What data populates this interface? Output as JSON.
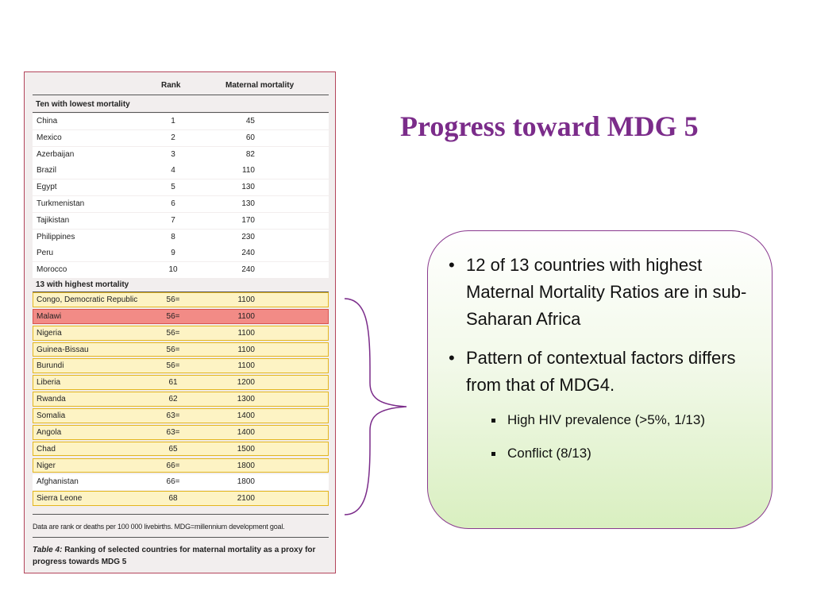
{
  "slide": {
    "title": "Progress toward MDG 5"
  },
  "table": {
    "headers": {
      "rank": "Rank",
      "mortality": "Maternal mortality"
    },
    "section_lowest": "Ten with lowest mortality",
    "lowest": [
      {
        "country": "China",
        "rank": "1",
        "mm": "45"
      },
      {
        "country": "Mexico",
        "rank": "2",
        "mm": "60"
      },
      {
        "country": "Azerbaijan",
        "rank": "3",
        "mm": "82"
      },
      {
        "country": "Brazil",
        "rank": "4",
        "mm": "110"
      },
      {
        "country": "Egypt",
        "rank": "5",
        "mm": "130"
      },
      {
        "country": "Turkmenistan",
        "rank": "6",
        "mm": "130"
      },
      {
        "country": "Tajikistan",
        "rank": "7",
        "mm": "170"
      },
      {
        "country": "Philippines",
        "rank": "8",
        "mm": "230"
      },
      {
        "country": "Peru",
        "rank": "9",
        "mm": "240"
      },
      {
        "country": "Morocco",
        "rank": "10",
        "mm": "240"
      }
    ],
    "section_highest": "13 with highest mortality",
    "highest": [
      {
        "country": "Congo, Democratic Republic",
        "rank": "56=",
        "mm": "1100",
        "style": "hl"
      },
      {
        "country": "Malawi",
        "rank": "56=",
        "mm": "1100",
        "style": "red"
      },
      {
        "country": "Nigeria",
        "rank": "56=",
        "mm": "1100",
        "style": "hl"
      },
      {
        "country": "Guinea-Bissau",
        "rank": "56=",
        "mm": "1100",
        "style": "hl"
      },
      {
        "country": "Burundi",
        "rank": "56=",
        "mm": "1100",
        "style": "hl"
      },
      {
        "country": "Liberia",
        "rank": "61",
        "mm": "1200",
        "style": "hl"
      },
      {
        "country": "Rwanda",
        "rank": "62",
        "mm": "1300",
        "style": "hl"
      },
      {
        "country": "Somalia",
        "rank": "63=",
        "mm": "1400",
        "style": "hl"
      },
      {
        "country": "Angola",
        "rank": "63=",
        "mm": "1400",
        "style": "hl"
      },
      {
        "country": "Chad",
        "rank": "65",
        "mm": "1500",
        "style": "hl"
      },
      {
        "country": "Niger",
        "rank": "66=",
        "mm": "1800",
        "style": "hl"
      },
      {
        "country": "Afghanistan",
        "rank": "66=",
        "mm": "1800",
        "style": "plain"
      },
      {
        "country": "Sierra Leone",
        "rank": "68",
        "mm": "2100",
        "style": "hl"
      }
    ],
    "footnote": "Data are rank or deaths per 100 000 livebirths. MDG=millennium development goal.",
    "caption_label": "Table 4:",
    "caption_text": " Ranking of selected countries for maternal mortality as a proxy for progress towards MDG 5"
  },
  "callout": {
    "bullets": [
      {
        "text": "12 of 13 countries with highest Maternal Mortality Ratios are in sub-Saharan Africa"
      },
      {
        "text": "Pattern of contextual  factors differs from that of MDG4."
      }
    ],
    "sub_bullets": [
      {
        "text": "High HIV prevalence (>5%, 1/13)"
      },
      {
        "text": "Conflict (8/13)"
      }
    ],
    "colors": {
      "border": "#8a3a8f",
      "gradient_bottom": "#d9efc0"
    }
  },
  "colors": {
    "title": "#7b2c8a",
    "table_border": "#b3445b",
    "highlight_fill": "#fdf3c4",
    "highlight_border": "#e3b61f",
    "malawi_fill": "#f28b86",
    "brace": "#7b2c8a"
  }
}
